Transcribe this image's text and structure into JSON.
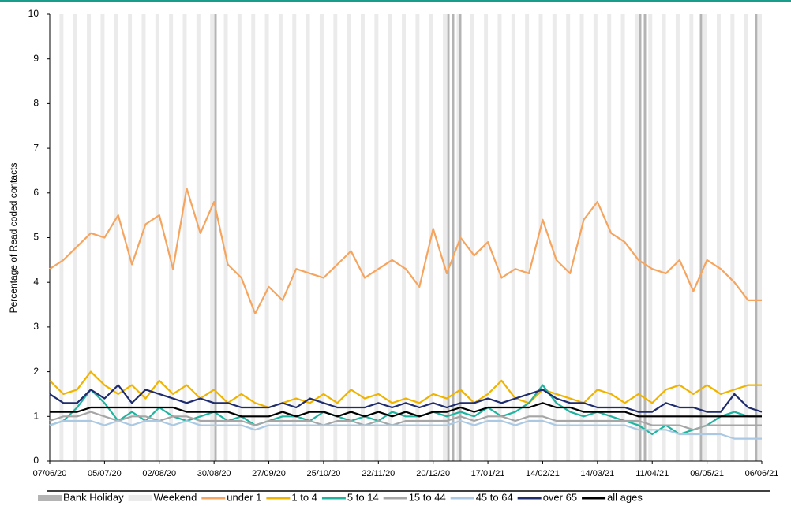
{
  "chart_data": {
    "type": "line",
    "y_label": "Percentage of Read coded contacts",
    "categories": [
      "07/06/20",
      null,
      null,
      null,
      "05/07/20",
      null,
      null,
      null,
      "02/08/20",
      null,
      null,
      null,
      "30/08/20",
      null,
      null,
      null,
      "27/09/20",
      null,
      null,
      null,
      "25/10/20",
      null,
      null,
      null,
      "22/11/20",
      null,
      null,
      null,
      "20/12/20",
      null,
      null,
      null,
      "17/01/21",
      null,
      null,
      null,
      "14/02/21",
      null,
      null,
      null,
      "14/03/21",
      null,
      null,
      null,
      "11/04/21",
      null,
      null,
      null,
      "09/05/21",
      null,
      null,
      null,
      "06/06/21"
    ],
    "ylim": [
      0,
      10
    ],
    "yticks": [
      0,
      1,
      2,
      3,
      4,
      5,
      6,
      7,
      8,
      9,
      10
    ],
    "legend_extra": [
      {
        "name": "Bank Holiday",
        "color": "#b4b4b4"
      },
      {
        "name": "Weekend",
        "color": "#ebebeb"
      }
    ],
    "series": [
      {
        "name": "under 1",
        "color": "#f5a55f",
        "values": [
          4.3,
          4.5,
          4.8,
          5.1,
          5.0,
          5.5,
          4.4,
          5.3,
          5.5,
          4.3,
          6.1,
          5.1,
          5.8,
          4.4,
          4.1,
          3.3,
          3.9,
          3.6,
          4.3,
          4.2,
          4.1,
          4.4,
          4.7,
          4.1,
          4.3,
          4.5,
          4.3,
          3.9,
          5.2,
          4.2,
          5.0,
          4.6,
          4.9,
          4.1,
          4.3,
          4.2,
          5.4,
          4.5,
          4.2,
          5.4,
          5.8,
          5.1,
          4.9,
          4.5,
          4.3,
          4.2,
          4.5,
          3.8,
          4.5,
          4.3,
          4.0,
          3.6,
          3.6
        ]
      },
      {
        "name": "1 to 4",
        "color": "#f0b400",
        "values": [
          1.8,
          1.5,
          1.6,
          2.0,
          1.7,
          1.5,
          1.7,
          1.4,
          1.8,
          1.5,
          1.7,
          1.4,
          1.6,
          1.3,
          1.5,
          1.3,
          1.2,
          1.3,
          1.4,
          1.3,
          1.5,
          1.3,
          1.6,
          1.4,
          1.5,
          1.3,
          1.4,
          1.3,
          1.5,
          1.4,
          1.6,
          1.3,
          1.5,
          1.8,
          1.4,
          1.3,
          1.6,
          1.5,
          1.4,
          1.3,
          1.6,
          1.5,
          1.3,
          1.5,
          1.3,
          1.6,
          1.7,
          1.5,
          1.7,
          1.5,
          1.6,
          1.7,
          1.7
        ]
      },
      {
        "name": "5 to 14",
        "color": "#20b4a0",
        "values": [
          0.8,
          0.9,
          1.2,
          1.6,
          1.3,
          0.9,
          1.1,
          0.9,
          1.2,
          1.0,
          0.9,
          1.0,
          1.1,
          0.9,
          1.0,
          0.8,
          0.9,
          1.0,
          1.0,
          0.9,
          1.1,
          1.0,
          0.9,
          1.0,
          0.9,
          1.1,
          1.0,
          1.0,
          1.1,
          1.0,
          1.1,
          1.0,
          1.2,
          1.0,
          1.1,
          1.3,
          1.7,
          1.3,
          1.1,
          1.0,
          1.1,
          1.0,
          0.9,
          0.8,
          0.6,
          0.8,
          0.6,
          0.7,
          0.8,
          1.0,
          1.1,
          1.0,
          1.0
        ]
      },
      {
        "name": "15 to 44",
        "color": "#a6a6a6",
        "values": [
          0.9,
          1.0,
          1.0,
          1.1,
          1.0,
          0.9,
          1.0,
          1.0,
          0.9,
          1.0,
          1.0,
          0.9,
          0.9,
          0.9,
          0.9,
          0.8,
          0.9,
          0.9,
          0.9,
          0.9,
          0.8,
          0.9,
          0.9,
          0.8,
          0.9,
          0.8,
          0.9,
          0.9,
          0.9,
          0.9,
          1.0,
          0.9,
          1.0,
          1.0,
          0.9,
          1.0,
          1.0,
          0.9,
          0.9,
          0.9,
          0.9,
          0.9,
          0.9,
          0.9,
          0.8,
          0.8,
          0.8,
          0.7,
          0.8,
          0.8,
          0.8,
          0.8,
          0.8
        ]
      },
      {
        "name": "45 to 64",
        "color": "#abc9e3",
        "values": [
          0.8,
          0.9,
          0.9,
          0.9,
          0.8,
          0.9,
          0.8,
          0.9,
          0.9,
          0.8,
          0.9,
          0.8,
          0.8,
          0.8,
          0.8,
          0.7,
          0.8,
          0.8,
          0.8,
          0.8,
          0.8,
          0.8,
          0.8,
          0.8,
          0.8,
          0.8,
          0.8,
          0.8,
          0.8,
          0.8,
          0.9,
          0.8,
          0.9,
          0.9,
          0.8,
          0.9,
          0.9,
          0.8,
          0.8,
          0.8,
          0.8,
          0.8,
          0.8,
          0.7,
          0.7,
          0.7,
          0.6,
          0.6,
          0.6,
          0.6,
          0.5,
          0.5,
          0.5
        ]
      },
      {
        "name": "over 65",
        "color": "#1f2c6e",
        "values": [
          1.5,
          1.3,
          1.3,
          1.6,
          1.4,
          1.7,
          1.3,
          1.6,
          1.5,
          1.4,
          1.3,
          1.4,
          1.3,
          1.3,
          1.2,
          1.2,
          1.2,
          1.3,
          1.2,
          1.4,
          1.3,
          1.2,
          1.2,
          1.2,
          1.3,
          1.2,
          1.3,
          1.2,
          1.3,
          1.2,
          1.3,
          1.3,
          1.4,
          1.3,
          1.4,
          1.5,
          1.6,
          1.4,
          1.3,
          1.3,
          1.2,
          1.2,
          1.2,
          1.1,
          1.1,
          1.3,
          1.2,
          1.2,
          1.1,
          1.1,
          1.5,
          1.2,
          1.1
        ]
      },
      {
        "name": "all ages",
        "color": "#000000",
        "values": [
          1.1,
          1.1,
          1.1,
          1.2,
          1.2,
          1.2,
          1.2,
          1.2,
          1.2,
          1.2,
          1.1,
          1.1,
          1.1,
          1.1,
          1.0,
          1.0,
          1.0,
          1.1,
          1.0,
          1.1,
          1.1,
          1.0,
          1.1,
          1.0,
          1.1,
          1.0,
          1.1,
          1.0,
          1.1,
          1.1,
          1.2,
          1.1,
          1.2,
          1.2,
          1.2,
          1.2,
          1.3,
          1.2,
          1.2,
          1.1,
          1.1,
          1.1,
          1.1,
          1.0,
          1.0,
          1.0,
          1.0,
          1.0,
          1.0,
          1.0,
          1.0,
          1.0,
          1.0
        ]
      }
    ]
  }
}
